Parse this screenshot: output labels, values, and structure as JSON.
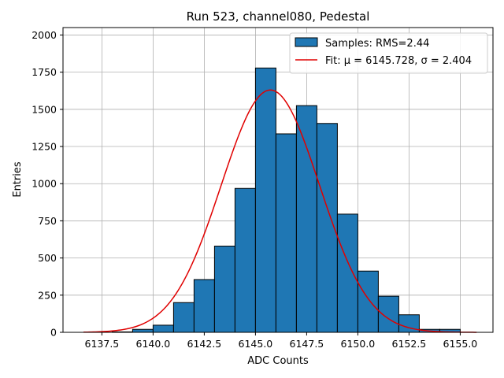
{
  "chart_data": {
    "type": "bar",
    "title": "Run 523, channel080, Pedestal",
    "xlabel": "ADC Counts",
    "ylabel": "Entries",
    "xlim": [
      6135.6,
      6156.6
    ],
    "ylim": [
      0,
      2050
    ],
    "xticks": [
      6137.5,
      6140.0,
      6142.5,
      6145.0,
      6147.5,
      6150.0,
      6152.5,
      6155.0
    ],
    "xtick_labels": [
      "6137.5",
      "6140.0",
      "6142.5",
      "6145.0",
      "6147.5",
      "6150.0",
      "6152.5",
      "6155.0"
    ],
    "yticks": [
      0,
      250,
      500,
      750,
      1000,
      1250,
      1500,
      1750,
      2000
    ],
    "ytick_labels": [
      "0",
      "250",
      "500",
      "750",
      "1000",
      "1250",
      "1500",
      "1750",
      "2000"
    ],
    "grid": true,
    "legend_position": "top-right",
    "bar_color": "#1f77b4",
    "fit_color": "#e00000",
    "bins": [
      {
        "x0": 6138.0,
        "x1": 6139.0,
        "value": 3
      },
      {
        "x0": 6139.0,
        "x1": 6140.0,
        "value": 20
      },
      {
        "x0": 6140.0,
        "x1": 6141.0,
        "value": 48
      },
      {
        "x0": 6141.0,
        "x1": 6142.0,
        "value": 200
      },
      {
        "x0": 6142.0,
        "x1": 6143.0,
        "value": 355
      },
      {
        "x0": 6143.0,
        "x1": 6144.0,
        "value": 580
      },
      {
        "x0": 6144.0,
        "x1": 6145.0,
        "value": 968
      },
      {
        "x0": 6145.0,
        "x1": 6146.0,
        "value": 1778
      },
      {
        "x0": 6146.0,
        "x1": 6147.0,
        "value": 1335
      },
      {
        "x0": 6147.0,
        "x1": 6148.0,
        "value": 1525
      },
      {
        "x0": 6148.0,
        "x1": 6149.0,
        "value": 1405
      },
      {
        "x0": 6149.0,
        "x1": 6150.0,
        "value": 795
      },
      {
        "x0": 6150.0,
        "x1": 6151.0,
        "value": 412
      },
      {
        "x0": 6151.0,
        "x1": 6152.0,
        "value": 243
      },
      {
        "x0": 6152.0,
        "x1": 6153.0,
        "value": 118
      },
      {
        "x0": 6153.0,
        "x1": 6154.0,
        "value": 20
      },
      {
        "x0": 6154.0,
        "x1": 6155.0,
        "value": 20
      }
    ],
    "fit": {
      "mu": 6145.728,
      "sigma": 2.404,
      "amplitude": 1630,
      "x_range": [
        6136.6,
        6155.8
      ]
    },
    "legend": {
      "samples_label": "Samples: RMS=2.44",
      "fit_label": "Fit: μ = 6145.728, σ = 2.404"
    }
  }
}
